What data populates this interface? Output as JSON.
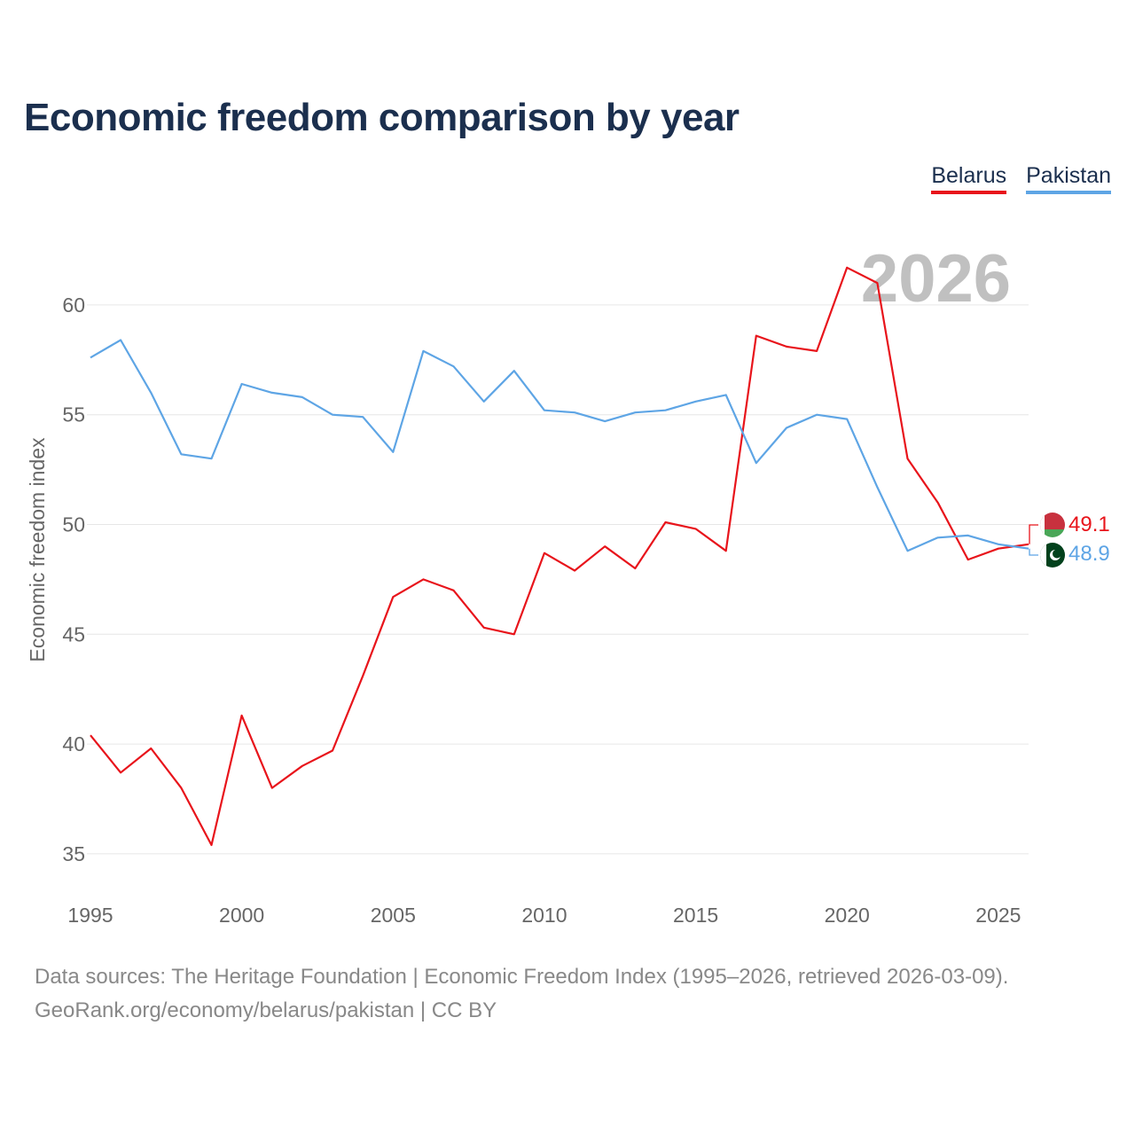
{
  "colors": {
    "title": "#1b2f4e",
    "grid": "#e6e6e6",
    "axis_text": "#666666",
    "year_watermark": "#c0c0c0",
    "footer": "#888888"
  },
  "chart_data": {
    "type": "line",
    "title": "Economic freedom comparison by year",
    "ylabel": "Economic freedom index",
    "xlabel": "",
    "x": [
      1995,
      1996,
      1997,
      1998,
      1999,
      2000,
      2001,
      2002,
      2003,
      2004,
      2005,
      2006,
      2007,
      2008,
      2009,
      2010,
      2011,
      2012,
      2013,
      2014,
      2015,
      2016,
      2017,
      2018,
      2019,
      2020,
      2021,
      2022,
      2023,
      2024,
      2025,
      2026
    ],
    "xlim": [
      1995,
      2026
    ],
    "ylim": [
      33.5,
      62.5
    ],
    "x_ticks": [
      1995,
      2000,
      2005,
      2010,
      2015,
      2020,
      2025
    ],
    "y_ticks": [
      35,
      40,
      45,
      50,
      55,
      60
    ],
    "grid": true,
    "legend_position": "top-right",
    "watermark_year": "2026",
    "series": [
      {
        "name": "Belarus",
        "color": "#e8141b",
        "end_label": "49.1",
        "values": [
          40.4,
          38.7,
          39.8,
          38.0,
          35.4,
          41.3,
          38.0,
          39.0,
          39.7,
          43.1,
          46.7,
          47.5,
          47.0,
          45.3,
          45.0,
          48.7,
          47.9,
          49.0,
          48.0,
          50.1,
          49.8,
          48.8,
          58.6,
          58.1,
          57.9,
          61.7,
          61.0,
          53.0,
          51.0,
          48.4,
          48.9,
          49.1
        ],
        "flag": "belarus-flag-icon"
      },
      {
        "name": "Pakistan",
        "color": "#5ea5e5",
        "end_label": "48.9",
        "values": [
          57.6,
          58.4,
          56.0,
          53.2,
          53.0,
          56.4,
          56.0,
          55.8,
          55.0,
          54.9,
          53.3,
          57.9,
          57.2,
          55.6,
          57.0,
          55.2,
          55.1,
          54.7,
          55.1,
          55.2,
          55.6,
          55.9,
          52.8,
          54.4,
          55.0,
          54.8,
          51.7,
          48.8,
          49.4,
          49.5,
          49.1,
          48.9
        ],
        "flag": "pakistan-flag-icon"
      }
    ]
  },
  "footer": {
    "line1": "Data sources: The Heritage Foundation | Economic Freedom Index (1995–2026, retrieved 2026-03-09).",
    "line2": "GeoRank.org/economy/belarus/pakistan | CC BY"
  }
}
